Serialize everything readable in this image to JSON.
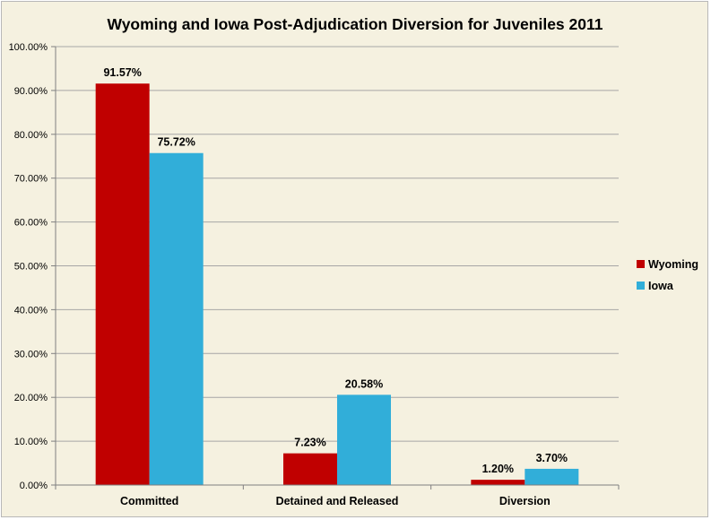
{
  "chart_data": {
    "type": "bar",
    "title": "Wyoming and Iowa Post-Adjudication Diversion for Juveniles 2011",
    "categories": [
      "Committed",
      "Detained and Released",
      "Diversion"
    ],
    "series": [
      {
        "name": "Wyoming",
        "color": "#c00000",
        "values": [
          91.57,
          7.23,
          1.2
        ],
        "labels": [
          "91.57%",
          "7.23%",
          "1.20%"
        ]
      },
      {
        "name": "Iowa",
        "color": "#31aed9",
        "values": [
          75.72,
          20.58,
          3.7
        ],
        "labels": [
          "75.72%",
          "20.58%",
          "3.70%"
        ]
      }
    ],
    "ylim": [
      0,
      100
    ],
    "yticks": [
      0,
      10,
      20,
      30,
      40,
      50,
      60,
      70,
      80,
      90,
      100
    ],
    "ytick_labels": [
      "0.00%",
      "10.00%",
      "20.00%",
      "30.00%",
      "40.00%",
      "50.00%",
      "60.00%",
      "70.00%",
      "80.00%",
      "90.00%",
      "100.00%"
    ],
    "xlabel": "",
    "ylabel": "",
    "grid": true,
    "legend_position": "right",
    "background_color": "#f5f1e0",
    "gridline_color": "#a6a6a6"
  }
}
